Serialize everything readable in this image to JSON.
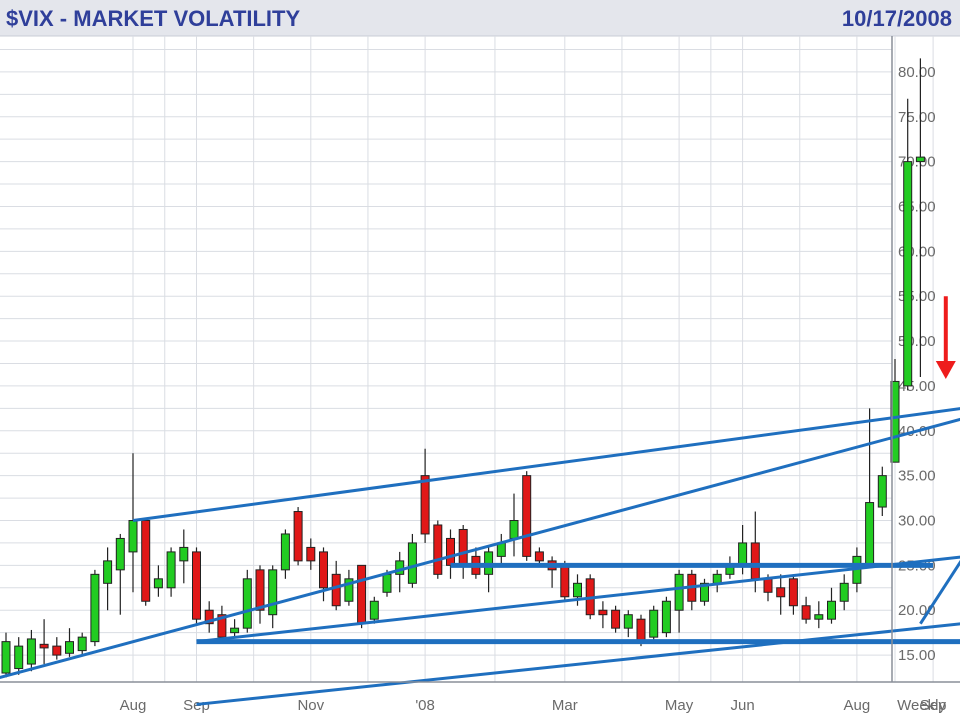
{
  "chart_data": {
    "type": "candlestick",
    "title": "$VIX - MARKET VOLATILITY",
    "date": "10/17/2008",
    "period_label": "Weekly",
    "ylim": [
      12,
      84
    ],
    "y_ticks": [
      "15.00",
      "20.00",
      "25.00",
      "30.00",
      "35.00",
      "40.00",
      "45.00",
      "50.00",
      "55.00",
      "60.00",
      "65.00",
      "70.00",
      "75.00",
      "80.00"
    ],
    "x_ticks": [
      {
        "label": "Aug",
        "index": 10
      },
      {
        "label": "Sep",
        "index": 15
      },
      {
        "label": "Nov",
        "index": 24
      },
      {
        "label": "'08",
        "index": 33
      },
      {
        "label": "Mar",
        "index": 44
      },
      {
        "label": "May",
        "index": 53
      },
      {
        "label": "Jun",
        "index": 58
      },
      {
        "label": "Aug",
        "index": 67
      },
      {
        "label": "Sep",
        "index": 73
      }
    ],
    "candles": [
      [
        13.0,
        16.5,
        12.5,
        17.5
      ],
      [
        13.5,
        16.0,
        12.8,
        17.0
      ],
      [
        14.0,
        16.8,
        13.2,
        17.8
      ],
      [
        16.2,
        15.8,
        14.0,
        19.0
      ],
      [
        16.0,
        15.0,
        14.5,
        17.0
      ],
      [
        15.2,
        16.5,
        14.8,
        18.0
      ],
      [
        15.5,
        17.0,
        15.0,
        17.5
      ],
      [
        16.5,
        24.0,
        16.0,
        24.5
      ],
      [
        23.0,
        25.5,
        20.0,
        27.0
      ],
      [
        24.5,
        28.0,
        19.5,
        28.5
      ],
      [
        26.5,
        30.0,
        22.0,
        37.5
      ],
      [
        30.0,
        21.0,
        20.5,
        30.0
      ],
      [
        22.5,
        23.5,
        21.5,
        25.0
      ],
      [
        22.5,
        26.5,
        21.5,
        27.0
      ],
      [
        25.5,
        27.0,
        23.0,
        29.0
      ],
      [
        26.5,
        19.0,
        18.5,
        27.0
      ],
      [
        20.0,
        18.5,
        17.5,
        21.0
      ],
      [
        19.5,
        17.0,
        16.5,
        20.5
      ],
      [
        17.5,
        18.0,
        17.0,
        19.0
      ],
      [
        18.0,
        23.5,
        17.5,
        24.5
      ],
      [
        24.5,
        20.0,
        18.5,
        25.0
      ],
      [
        19.5,
        24.5,
        18.0,
        25.0
      ],
      [
        24.5,
        28.5,
        23.5,
        29.0
      ],
      [
        31.0,
        25.5,
        25.0,
        31.5
      ],
      [
        27.0,
        25.5,
        24.5,
        28.0
      ],
      [
        26.5,
        22.5,
        21.0,
        27.0
      ],
      [
        24.0,
        20.5,
        20.0,
        25.5
      ],
      [
        21.0,
        23.5,
        20.5,
        24.5
      ],
      [
        25.0,
        18.5,
        18.0,
        25.0
      ],
      [
        19.0,
        21.0,
        18.5,
        21.5
      ],
      [
        22.0,
        24.0,
        21.5,
        24.5
      ],
      [
        24.0,
        25.5,
        22.0,
        26.5
      ],
      [
        23.0,
        27.5,
        22.5,
        28.5
      ],
      [
        35.0,
        28.5,
        27.5,
        38.0
      ],
      [
        29.5,
        24.0,
        23.5,
        30.0
      ],
      [
        28.0,
        25.0,
        23.5,
        29.0
      ],
      [
        29.0,
        25.0,
        23.5,
        29.5
      ],
      [
        26.0,
        24.0,
        23.5,
        27.0
      ],
      [
        24.0,
        26.5,
        22.0,
        27.0
      ],
      [
        26.0,
        27.5,
        25.0,
        28.5
      ],
      [
        28.0,
        30.0,
        26.0,
        33.0
      ],
      [
        35.0,
        26.0,
        25.5,
        35.5
      ],
      [
        26.5,
        25.5,
        25.0,
        27.0
      ],
      [
        25.5,
        24.5,
        22.5,
        26.0
      ],
      [
        25.0,
        21.5,
        21.0,
        25.5
      ],
      [
        21.5,
        23.0,
        20.5,
        24.0
      ],
      [
        23.5,
        19.5,
        19.0,
        24.0
      ],
      [
        20.0,
        19.5,
        18.0,
        21.0
      ],
      [
        20.0,
        18.0,
        17.5,
        20.5
      ],
      [
        18.0,
        19.5,
        17.0,
        20.0
      ],
      [
        19.0,
        16.5,
        16.0,
        19.5
      ],
      [
        17.0,
        20.0,
        16.5,
        20.5
      ],
      [
        17.5,
        21.0,
        17.0,
        21.5
      ],
      [
        20.0,
        24.0,
        17.5,
        24.5
      ],
      [
        24.0,
        21.0,
        20.0,
        24.5
      ],
      [
        21.0,
        23.0,
        20.5,
        23.5
      ],
      [
        23.0,
        24.0,
        22.0,
        24.5
      ],
      [
        24.0,
        25.0,
        23.5,
        26.0
      ],
      [
        25.0,
        27.5,
        24.0,
        29.5
      ],
      [
        27.5,
        23.5,
        22.0,
        31.0
      ],
      [
        23.5,
        22.0,
        21.0,
        24.0
      ],
      [
        22.5,
        21.5,
        19.5,
        24.0
      ],
      [
        23.5,
        20.5,
        19.5,
        24.0
      ],
      [
        20.5,
        19.0,
        18.5,
        21.5
      ],
      [
        19.0,
        19.5,
        18.0,
        21.0
      ],
      [
        19.0,
        21.0,
        18.5,
        22.5
      ],
      [
        21.0,
        23.0,
        20.0,
        24.0
      ],
      [
        23.0,
        26.0,
        22.0,
        27.0
      ],
      [
        25.0,
        32.0,
        25.0,
        42.5
      ],
      [
        31.5,
        35.0,
        30.5,
        36.0
      ],
      [
        36.5,
        45.5,
        36.5,
        48.0
      ],
      [
        45.0,
        70.0,
        44.5,
        77.0
      ],
      [
        70.0,
        70.5,
        46.0,
        81.5
      ]
    ],
    "overlay_lines": [
      {
        "kind": "trendline",
        "points": [
          [
            -0.5,
            12.5
          ],
          [
            81,
            43.5
          ]
        ],
        "color": "#1f6fbf",
        "width": 3
      },
      {
        "kind": "trendline",
        "points": [
          [
            10,
            30.0
          ],
          [
            80.5,
            43.5
          ]
        ],
        "color": "#1f6fbf",
        "width": 3
      },
      {
        "kind": "trendline",
        "points": [
          [
            15,
            16.5
          ],
          [
            82,
            27.0
          ]
        ],
        "color": "#1f6fbf",
        "width": 3
      },
      {
        "kind": "trendline",
        "points": [
          [
            15,
            9.5
          ],
          [
            82,
            19.5
          ]
        ],
        "color": "#1f6fbf",
        "width": 3
      },
      {
        "kind": "support",
        "points": [
          [
            15,
            16.5
          ],
          [
            80.5,
            16.5
          ]
        ],
        "color": "#1f6fbf",
        "width": 5
      },
      {
        "kind": "resistance",
        "points": [
          [
            35,
            25.0
          ],
          [
            73,
            25.0
          ]
        ],
        "color": "#1f6fbf",
        "width": 5
      },
      {
        "kind": "breakout",
        "points": [
          [
            72,
            18.5
          ],
          [
            83,
            42.5
          ]
        ],
        "color": "#1f6fbf",
        "width": 3
      }
    ],
    "annotation": {
      "kind": "arrow-down",
      "index": 74,
      "from": 55.0,
      "to": 46.0,
      "color": "#ee1c1c"
    },
    "colors": {
      "up": "#22cc22",
      "down": "#e01818",
      "grid": "#dadde3",
      "header_bg": "#e4e6ec",
      "text": "#2f3f9a"
    }
  }
}
